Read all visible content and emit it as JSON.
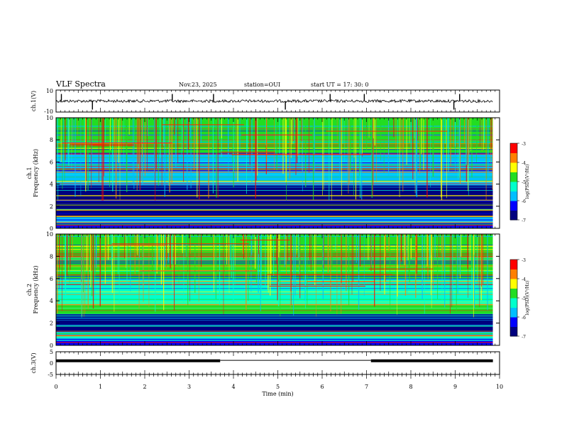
{
  "header": {
    "title": "VLF Spectra",
    "date": "Nov.23, 2025",
    "station": "station=OUI",
    "start_time": "start  UT =   17: 30: 0"
  },
  "chart_data": [
    {
      "type": "line",
      "name": "ch1-waveform",
      "ylabel": "ch.1(V)",
      "ylim": [
        -10,
        10
      ],
      "yticks": [
        "10",
        "-10"
      ],
      "xlim": [
        0,
        10
      ],
      "baseline": 0,
      "spikes_min": [
        0.12,
        0.82,
        2.62,
        3.55,
        5.17,
        6.18,
        6.95,
        8.97,
        9.1
      ],
      "grid": true
    },
    {
      "type": "heatmap",
      "name": "ch1-spectrogram",
      "ylabel": "ch.1\nFrequency (kHz)",
      "xlim": [
        0,
        10
      ],
      "ylim": [
        0,
        10
      ],
      "yticks": [
        "0",
        "2",
        "4",
        "6",
        "8",
        "10"
      ],
      "data_extent_min": 9.85,
      "colorbar": {
        "label": "log(PSD)(V²/Hz)",
        "range": [
          -7,
          -3
        ],
        "ticks": [
          "-3",
          "-4",
          "-5",
          "-6",
          "-7"
        ]
      },
      "colormap": [
        "#00007f",
        "#0000ff",
        "#00bfff",
        "#00ffcc",
        "#22dd22",
        "#ffff00",
        "#ff7f00",
        "#ff0000"
      ],
      "bands": [
        {
          "from_khz": 0,
          "to_khz": 0.6,
          "level": -6.3
        },
        {
          "from_khz": 0.6,
          "to_khz": 1.0,
          "level": -5.6
        },
        {
          "from_khz": 1.0,
          "to_khz": 2.2,
          "level": -6.6
        },
        {
          "from_khz": 2.2,
          "to_khz": 3.9,
          "level": -6.8
        },
        {
          "from_khz": 3.9,
          "to_khz": 6.8,
          "level": -5.8
        },
        {
          "from_khz": 6.8,
          "to_khz": 10.0,
          "level": -4.7
        }
      ]
    },
    {
      "type": "heatmap",
      "name": "ch2-spectrogram",
      "ylabel": "ch.2\nFrequency (kHz)",
      "xlim": [
        0,
        10
      ],
      "ylim": [
        0,
        10
      ],
      "yticks": [
        "0",
        "2",
        "4",
        "6",
        "8",
        "10"
      ],
      "data_extent_min": 9.85,
      "colorbar": {
        "label": "log(PSD)(V²/Hz)",
        "range": [
          -7,
          -3
        ],
        "ticks": [
          "-3",
          "-4",
          "-5",
          "-6",
          "-7"
        ]
      },
      "colormap": [
        "#00007f",
        "#0000ff",
        "#00bfff",
        "#00ffcc",
        "#22dd22",
        "#ffff00",
        "#ff7f00",
        "#ff0000"
      ],
      "bands": [
        {
          "from_khz": 0,
          "to_khz": 0.6,
          "level": -6.2
        },
        {
          "from_khz": 0.6,
          "to_khz": 1.2,
          "level": -5.5
        },
        {
          "from_khz": 1.2,
          "to_khz": 2.8,
          "level": -6.7
        },
        {
          "from_khz": 2.8,
          "to_khz": 3.6,
          "level": -4.9
        },
        {
          "from_khz": 3.6,
          "to_khz": 6.0,
          "level": -5.4
        },
        {
          "from_khz": 6.0,
          "to_khz": 10.0,
          "level": -4.6
        }
      ]
    },
    {
      "type": "line",
      "name": "ch3-signal",
      "ylabel": "ch.3(V)",
      "xlabel": "Time (min)",
      "ylim": [
        -5,
        5
      ],
      "yticks": [
        "5",
        "0",
        "-5"
      ],
      "xlim": [
        0,
        10
      ],
      "xticks": [
        "0",
        "1",
        "2",
        "3",
        "4",
        "5",
        "6",
        "7",
        "8",
        "9",
        "10"
      ],
      "segments": [
        {
          "x": [
            0,
            3.7
          ],
          "y": 1.0
        },
        {
          "x": [
            3.7,
            7.1
          ],
          "y": 1.2
        },
        {
          "x": [
            7.1,
            9.85
          ],
          "y": 1.0
        }
      ],
      "thick_segments": [
        [
          0,
          3.7
        ],
        [
          7.1,
          9.85
        ]
      ]
    }
  ]
}
